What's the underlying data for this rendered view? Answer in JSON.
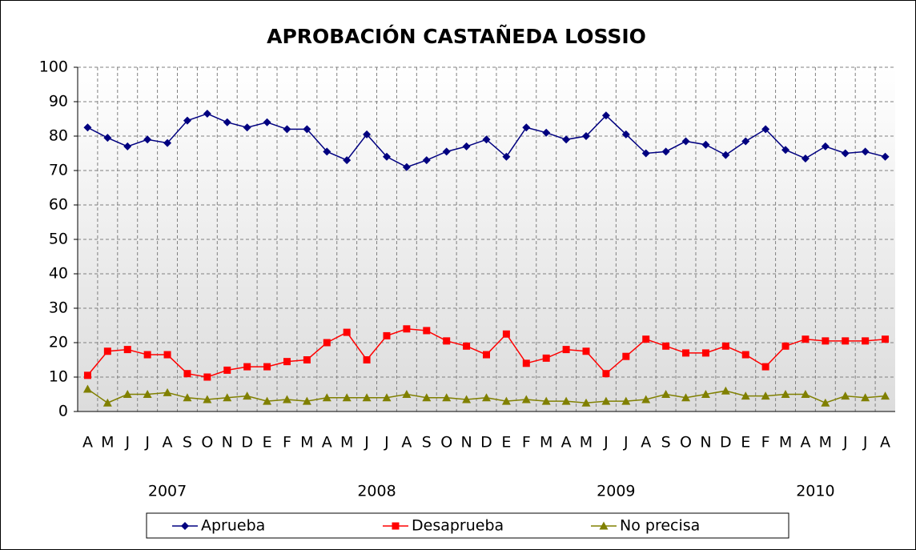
{
  "chart_data": {
    "type": "line",
    "title": "APROBACIÓN CASTAÑEDA LOSSIO",
    "categories": [
      "A",
      "M",
      "J",
      "J",
      "A",
      "S",
      "O",
      "N",
      "D",
      "E",
      "F",
      "M",
      "A",
      "M",
      "J",
      "J",
      "A",
      "S",
      "O",
      "N",
      "D",
      "E",
      "F",
      "M",
      "A",
      "M",
      "J",
      "J",
      "A",
      "S",
      "O",
      "N",
      "D",
      "E",
      "F",
      "M",
      "A",
      "M",
      "J",
      "J",
      "A"
    ],
    "groups": [
      {
        "label": "2007",
        "count": 9
      },
      {
        "label": "2008",
        "count": 12
      },
      {
        "label": "2009",
        "count": 12
      },
      {
        "label": "2010",
        "count": 8
      }
    ],
    "series": [
      {
        "name": "Aprueba",
        "color": "#000080",
        "marker": "diamond",
        "values": [
          82.5,
          79.5,
          77,
          79,
          78,
          84.5,
          86.5,
          84,
          82.5,
          84,
          82,
          82,
          75.5,
          73,
          80.5,
          74,
          71,
          73,
          75.5,
          77,
          79,
          74,
          82.5,
          81,
          79,
          80,
          86,
          80.5,
          75,
          75.5,
          78.5,
          77.5,
          74.5,
          78.5,
          82,
          76,
          73.5,
          77,
          75,
          75.5,
          74
        ]
      },
      {
        "name": "Desaprueba",
        "color": "#ff0000",
        "marker": "square",
        "values": [
          10.5,
          17.5,
          18,
          16.5,
          16.5,
          11,
          10,
          12,
          13,
          13,
          14.5,
          15,
          20,
          23,
          15,
          22,
          24,
          23.5,
          20.5,
          19,
          16.5,
          22.5,
          14,
          15.5,
          18,
          17.5,
          11,
          16,
          21,
          19,
          17,
          17,
          19,
          16.5,
          13,
          19,
          21,
          20.5,
          20.5,
          20.5,
          21
        ]
      },
      {
        "name": "No precisa",
        "color": "#808000",
        "marker": "triangle",
        "values": [
          6.5,
          2.5,
          5,
          5,
          5.5,
          4,
          3.5,
          4,
          4.5,
          3,
          3.5,
          3,
          4,
          4,
          4,
          4,
          5,
          4,
          4,
          3.5,
          4,
          3,
          3.5,
          3,
          3,
          2.5,
          3,
          3,
          3.5,
          5,
          4,
          5,
          6,
          4.5,
          4.5,
          5,
          5,
          2.5,
          4.5,
          4,
          4.5
        ]
      }
    ],
    "ylim": [
      0,
      100
    ],
    "yticks": [
      0,
      10,
      20,
      30,
      40,
      50,
      60,
      70,
      80,
      90,
      100
    ],
    "grid": true,
    "legend": "bottom"
  }
}
